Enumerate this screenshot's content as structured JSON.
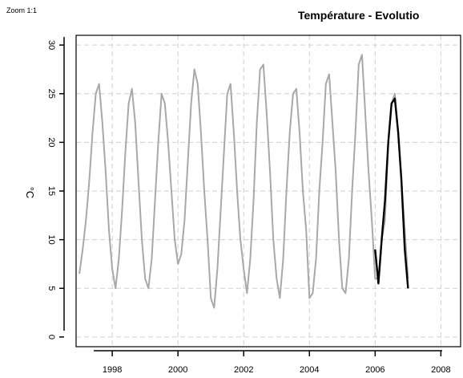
{
  "zoom_label": "Zoom 1:1",
  "chart_data": {
    "type": "line",
    "title": "Température - Evolutio",
    "xlabel": "",
    "ylabel": "°C",
    "xlim": [
      1996.9,
      2008.6
    ],
    "ylim": [
      -1,
      31
    ],
    "grid": true,
    "x_ticks": [
      1998,
      2000,
      2002,
      2004,
      2006,
      2008
    ],
    "x_tick_labels": [
      "1998",
      "2000",
      "2002",
      "2004",
      "2006",
      "2008"
    ],
    "y_ticks": [
      0,
      5,
      10,
      15,
      20,
      25,
      30
    ],
    "y_tick_labels": [
      "0",
      "5",
      "10",
      "15",
      "20",
      "25",
      "30"
    ],
    "series": [
      {
        "color": "#a8a8a8",
        "x": [
          1997.0,
          1997.1,
          1997.2,
          1997.3,
          1997.4,
          1997.5,
          1997.6,
          1997.7,
          1997.8,
          1997.9,
          1998.0,
          1998.1,
          1998.2,
          1998.3,
          1998.4,
          1998.5,
          1998.6,
          1998.7,
          1998.8,
          1998.9,
          1999.0,
          1999.1,
          1999.2,
          1999.3,
          1999.4,
          1999.5,
          1999.6,
          1999.7,
          1999.8,
          1999.9,
          2000.0,
          2000.1,
          2000.2,
          2000.3,
          2000.4,
          2000.5,
          2000.6,
          2000.7,
          2000.8,
          2000.9,
          2001.0,
          2001.1,
          2001.2,
          2001.3,
          2001.4,
          2001.5,
          2001.6,
          2001.7,
          2001.8,
          2001.9,
          2002.0,
          2002.1,
          2002.2,
          2002.3,
          2002.4,
          2002.5,
          2002.6,
          2002.7,
          2002.8,
          2002.9,
          2003.0,
          2003.1,
          2003.2,
          2003.3,
          2003.4,
          2003.5,
          2003.6,
          2003.7,
          2003.8,
          2003.9,
          2004.0,
          2004.1,
          2004.2,
          2004.3,
          2004.4,
          2004.5,
          2004.6,
          2004.7,
          2004.8,
          2004.9,
          2005.0,
          2005.1,
          2005.2,
          2005.3,
          2005.4,
          2005.5,
          2005.6,
          2005.7,
          2005.8,
          2005.9,
          2006.0,
          2006.1,
          2006.2,
          2006.3,
          2006.4,
          2006.5,
          2006.6,
          2006.7,
          2006.8,
          2006.9,
          2007.0
        ],
        "y": [
          6.5,
          9,
          12,
          16,
          21,
          25,
          26,
          22,
          17,
          11,
          7,
          5,
          8,
          13,
          19,
          24,
          25.5,
          22,
          16,
          10,
          6,
          5,
          8,
          14,
          20,
          25,
          24,
          20,
          15,
          10,
          7.5,
          8.5,
          12,
          18,
          24,
          27.5,
          26,
          21,
          15,
          10,
          4,
          3,
          7,
          13,
          19,
          25,
          26,
          21,
          15,
          10,
          7,
          4.5,
          8,
          14,
          22,
          27.5,
          28,
          23,
          17,
          10,
          6,
          4,
          8,
          15,
          21,
          25,
          25.5,
          21,
          15,
          11,
          4,
          4.5,
          8,
          15,
          20,
          26,
          27,
          22,
          17,
          10,
          5,
          4.5,
          8,
          15,
          21,
          28,
          29,
          23,
          17,
          12,
          6,
          6,
          10,
          12,
          20,
          24,
          25,
          21,
          16,
          11,
          6
        ]
      },
      {
        "color": "#000000",
        "x": [
          2006.0,
          2006.1,
          2006.2,
          2006.3,
          2006.4,
          2006.5,
          2006.6,
          2006.7,
          2006.8,
          2006.9,
          2007.0
        ],
        "y": [
          9,
          5.5,
          10,
          14,
          20,
          24,
          24.5,
          21,
          16,
          9,
          5
        ]
      }
    ]
  }
}
